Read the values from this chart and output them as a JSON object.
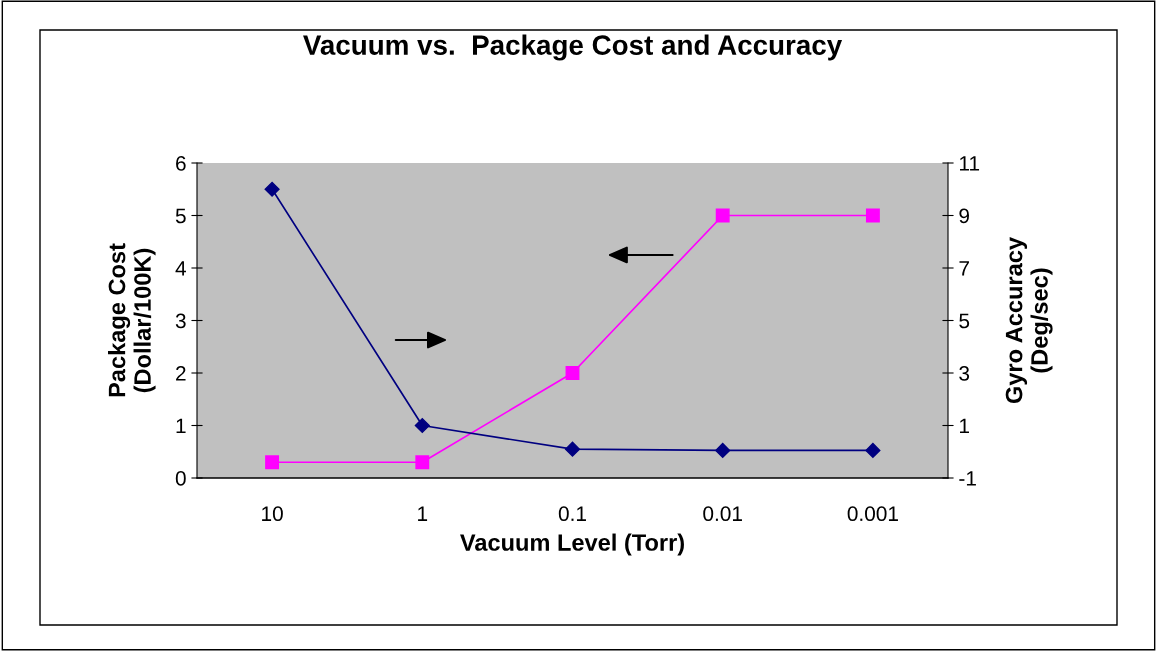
{
  "chart_data": {
    "type": "line",
    "title": "Vacuum vs.  Package Cost and Accuracy",
    "xlabel": "Vacuum Level (Torr)",
    "ylabel": "Package Cost\n(Dollar/100K)",
    "y2label": "Gyro Accuracy\n(Deg/sec)",
    "categories": [
      "10",
      "1",
      "0.1",
      "0.01",
      "0.001"
    ],
    "series": [
      {
        "color": "#000080",
        "marker": "diamond",
        "axis": "y2",
        "values": [
          10,
          1,
          0.1,
          0.05,
          0.05
        ]
      },
      {
        "color": "#ff00ff",
        "marker": "square",
        "values": [
          0.3,
          0.3,
          2,
          5,
          5
        ]
      }
    ],
    "ylim": [
      0,
      6
    ],
    "yticks": [
      0,
      1,
      2,
      3,
      4,
      5,
      6
    ],
    "y2lim": [
      -1,
      11
    ],
    "y2ticks": [
      -1,
      1,
      3,
      5,
      7,
      9,
      11
    ],
    "grid": false,
    "legend": false
  }
}
